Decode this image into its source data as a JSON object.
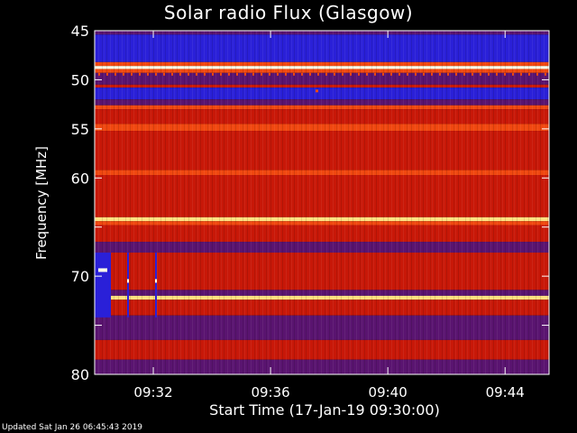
{
  "chart_data": {
    "type": "heatmap",
    "title": "Solar radio Flux (Glasgow)",
    "ylabel": "Frequency [MHz]",
    "xlabel": "Start Time (17-Jan-19 09:30:00)",
    "ylim": [
      45,
      80
    ],
    "y_inverted": true,
    "y_ticks": [
      45,
      50,
      55,
      60,
      65,
      70,
      75,
      80
    ],
    "y_tick_labels": [
      "45",
      "50",
      "55",
      "60",
      "70",
      "80"
    ],
    "y_tick_label_values": [
      45,
      50,
      55,
      60,
      70,
      80
    ],
    "xlim_minutes": [
      0,
      15.5
    ],
    "x_ticks": [
      "09:32",
      "09:36",
      "09:40",
      "09:44"
    ],
    "x_tick_minutes": [
      2,
      6,
      10,
      14
    ],
    "colors": {
      "blue": "#2a20d8",
      "purple": "#5a1470",
      "red": "#c81808",
      "orange": "#f04810",
      "yellow": "#ffe080",
      "white": "#ffffe8"
    },
    "bands": [
      {
        "from": 45.0,
        "to": 45.4,
        "color": "purple"
      },
      {
        "from": 45.4,
        "to": 48.2,
        "color": "blue"
      },
      {
        "from": 48.2,
        "to": 48.6,
        "color": "orange"
      },
      {
        "from": 48.6,
        "to": 48.9,
        "color": "white"
      },
      {
        "from": 48.9,
        "to": 49.3,
        "color": "orange"
      },
      {
        "from": 49.3,
        "to": 50.5,
        "color": "purple"
      },
      {
        "from": 50.5,
        "to": 50.8,
        "color": "red"
      },
      {
        "from": 50.8,
        "to": 52.0,
        "color": "blue"
      },
      {
        "from": 52.0,
        "to": 52.6,
        "color": "purple"
      },
      {
        "from": 52.6,
        "to": 53.0,
        "color": "orange"
      },
      {
        "from": 53.0,
        "to": 54.5,
        "color": "red"
      },
      {
        "from": 54.5,
        "to": 55.2,
        "color": "orange"
      },
      {
        "from": 55.2,
        "to": 59.2,
        "color": "red"
      },
      {
        "from": 59.2,
        "to": 59.7,
        "color": "orange"
      },
      {
        "from": 59.7,
        "to": 64.0,
        "color": "red"
      },
      {
        "from": 64.0,
        "to": 64.4,
        "color": "yellow"
      },
      {
        "from": 64.4,
        "to": 64.8,
        "color": "orange"
      },
      {
        "from": 64.8,
        "to": 66.5,
        "color": "red"
      },
      {
        "from": 66.5,
        "to": 67.6,
        "color": "purple"
      },
      {
        "from": 67.6,
        "to": 71.4,
        "color": "red"
      },
      {
        "from": 71.4,
        "to": 72.0,
        "color": "purple"
      },
      {
        "from": 72.0,
        "to": 72.4,
        "color": "yellow"
      },
      {
        "from": 72.4,
        "to": 74.0,
        "color": "red"
      },
      {
        "from": 74.0,
        "to": 76.5,
        "color": "purple"
      },
      {
        "from": 76.5,
        "to": 78.5,
        "color": "red"
      },
      {
        "from": 78.5,
        "to": 80.0,
        "color": "purple"
      }
    ]
  },
  "footer": "Updated Sat Jan 26 06:45:43 2019"
}
